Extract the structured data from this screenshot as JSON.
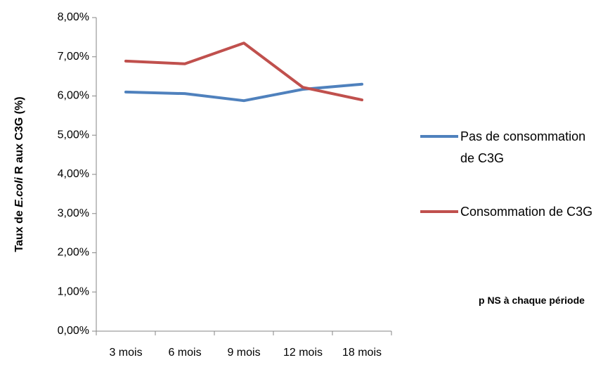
{
  "chart_data": {
    "type": "line",
    "ylabel": [
      "Taux de ",
      "E.coli",
      " R aux C3G (%)"
    ],
    "categories": [
      "3 mois",
      "6 mois",
      "9 mois",
      "12 mois",
      "18 mois"
    ],
    "series": [
      {
        "name": "Pas de consommation de C3G",
        "color": "#4f81bd",
        "values": [
          6.1,
          6.06,
          5.88,
          6.17,
          6.3
        ]
      },
      {
        "name": "Consommation de C3G",
        "color": "#c0504d",
        "values": [
          6.89,
          6.82,
          7.35,
          6.22,
          5.9
        ]
      }
    ],
    "ylim": [
      0,
      8
    ],
    "yticks": [
      {
        "value": 0,
        "label": "0,00%"
      },
      {
        "value": 1,
        "label": "1,00%"
      },
      {
        "value": 2,
        "label": "2,00%"
      },
      {
        "value": 3,
        "label": "3,00%"
      },
      {
        "value": 4,
        "label": "4,00%"
      },
      {
        "value": 5,
        "label": "5,00%"
      },
      {
        "value": 6,
        "label": "6,00%"
      },
      {
        "value": 7,
        "label": "7,00%"
      },
      {
        "value": 8,
        "label": "8,00%"
      }
    ],
    "grid": false,
    "legend": "right",
    "annotation": "p NS à chaque période"
  }
}
